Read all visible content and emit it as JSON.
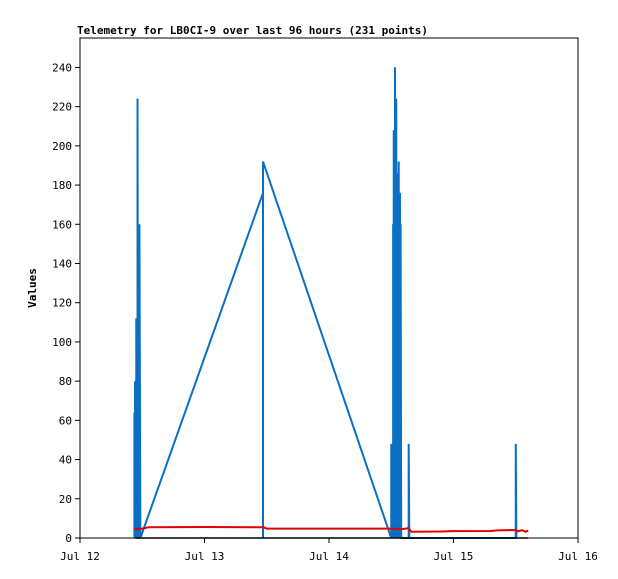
{
  "chart_data": {
    "type": "line",
    "title": "Telemetry for LB0CI-9 over last 96 hours (231 points)",
    "xlabel": "",
    "ylabel": "Values",
    "xlim": [
      0,
      4
    ],
    "ylim": [
      0,
      255
    ],
    "x_unit": "days since Jul 12",
    "x_ticks": [
      {
        "value": 0,
        "label": "Jul 12"
      },
      {
        "value": 1,
        "label": "Jul 13"
      },
      {
        "value": 2,
        "label": "Jul 14"
      },
      {
        "value": 3,
        "label": "Jul 15"
      },
      {
        "value": 4,
        "label": "Jul 16"
      }
    ],
    "y_ticks": [
      0,
      20,
      40,
      60,
      80,
      100,
      120,
      140,
      160,
      180,
      200,
      220,
      240
    ],
    "grid": false,
    "legend": "none",
    "series": [
      {
        "color": "#0b6fc2",
        "points": [
          [
            0.437,
            0
          ],
          [
            0.437,
            64
          ],
          [
            0.442,
            0
          ],
          [
            0.442,
            80
          ],
          [
            0.447,
            0
          ],
          [
            0.447,
            32
          ],
          [
            0.452,
            0
          ],
          [
            0.452,
            112
          ],
          [
            0.457,
            0
          ],
          [
            0.457,
            40
          ],
          [
            0.462,
            0
          ],
          [
            0.462,
            224
          ],
          [
            0.467,
            0
          ],
          [
            0.467,
            0
          ],
          [
            0.472,
            0
          ],
          [
            0.472,
            80
          ],
          [
            0.477,
            0
          ],
          [
            0.477,
            160
          ],
          [
            0.485,
            0
          ],
          [
            0.485,
            0
          ],
          [
            1.47,
            176
          ],
          [
            1.47,
            0
          ],
          [
            1.47,
            192
          ],
          [
            2.5,
            0
          ],
          [
            2.5,
            48
          ],
          [
            2.505,
            0
          ],
          [
            2.505,
            40
          ],
          [
            2.51,
            0
          ],
          [
            2.51,
            32
          ],
          [
            2.515,
            0
          ],
          [
            2.515,
            160
          ],
          [
            2.52,
            0
          ],
          [
            2.52,
            208
          ],
          [
            2.525,
            0
          ],
          [
            2.525,
            176
          ],
          [
            2.53,
            0
          ],
          [
            2.53,
            240
          ],
          [
            2.535,
            0
          ],
          [
            2.535,
            224
          ],
          [
            2.54,
            0
          ],
          [
            2.54,
            224
          ],
          [
            2.545,
            0
          ],
          [
            2.545,
            134
          ],
          [
            2.55,
            0
          ],
          [
            2.55,
            174
          ],
          [
            2.555,
            0
          ],
          [
            2.555,
            186
          ],
          [
            2.56,
            0
          ],
          [
            2.56,
            192
          ],
          [
            2.565,
            0
          ],
          [
            2.565,
            112
          ],
          [
            2.57,
            0
          ],
          [
            2.57,
            176
          ],
          [
            2.575,
            0
          ],
          [
            2.575,
            160
          ],
          [
            2.58,
            0
          ],
          [
            2.64,
            0
          ],
          [
            2.64,
            48
          ],
          [
            2.645,
            0
          ],
          [
            3.5,
            0
          ],
          [
            3.5,
            48
          ],
          [
            3.505,
            0
          ]
        ]
      },
      {
        "color": "#e00000",
        "points": [
          [
            0.437,
            4.5
          ],
          [
            0.5,
            4.8
          ],
          [
            0.55,
            5.5
          ],
          [
            1.0,
            5.6
          ],
          [
            1.47,
            5.5
          ],
          [
            1.5,
            4.8
          ],
          [
            2.0,
            4.8
          ],
          [
            2.5,
            4.8
          ],
          [
            2.58,
            4.5
          ],
          [
            2.64,
            5.0
          ],
          [
            2.66,
            3.2
          ],
          [
            2.9,
            3.3
          ],
          [
            3.0,
            3.5
          ],
          [
            3.3,
            3.6
          ],
          [
            3.35,
            3.9
          ],
          [
            3.5,
            4.1
          ],
          [
            3.52,
            3.4
          ],
          [
            3.55,
            4.0
          ],
          [
            3.58,
            3.2
          ],
          [
            3.6,
            3.8
          ]
        ]
      },
      {
        "color": "#000000",
        "points": [
          [
            0.437,
            0
          ],
          [
            3.6,
            0
          ]
        ]
      }
    ]
  }
}
